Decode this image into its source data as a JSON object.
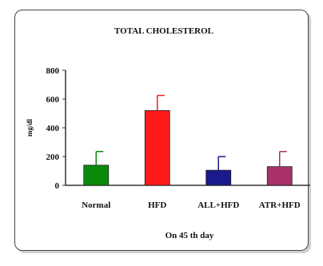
{
  "chart_data": {
    "type": "bar",
    "title": "TOTAL CHOLESTEROL",
    "xlabel": "On 45 th day",
    "ylabel": "mg/dl",
    "categories": [
      "Normal",
      "HFD",
      "ALL+HFD",
      "ATR+HFD"
    ],
    "values": [
      140,
      520,
      105,
      130
    ],
    "errors": [
      95,
      105,
      95,
      105
    ],
    "colors": [
      "#0a8a0a",
      "#ff1a1a",
      "#1a1a8c",
      "#a8316a"
    ],
    "ylim": [
      0,
      800
    ],
    "yticks": [
      0,
      200,
      400,
      600,
      800
    ],
    "grid": false,
    "legend": "none"
  }
}
